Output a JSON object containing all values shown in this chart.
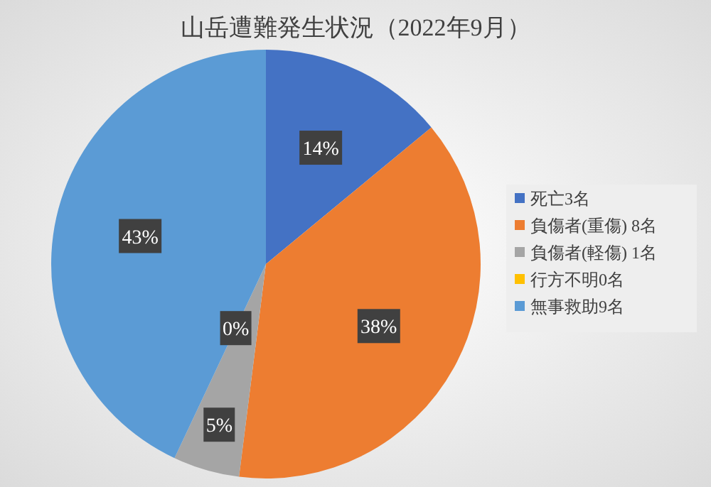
{
  "chart_data": {
    "type": "pie",
    "title": "山岳遭難発生状況（2022年9月）",
    "categories": [
      "死亡3名",
      "負傷者(重傷) 8名",
      "負傷者(軽傷) 1名",
      "行方不明0名",
      "無事救助9名"
    ],
    "values": [
      14,
      38,
      5,
      0,
      43
    ],
    "colors": [
      "#4472c4",
      "#ed7d31",
      "#a5a5a5",
      "#ffc000",
      "#5b9bd5"
    ],
    "value_labels": [
      "14%",
      "38%",
      "5%",
      "0%",
      "43%"
    ],
    "legend": "right"
  }
}
